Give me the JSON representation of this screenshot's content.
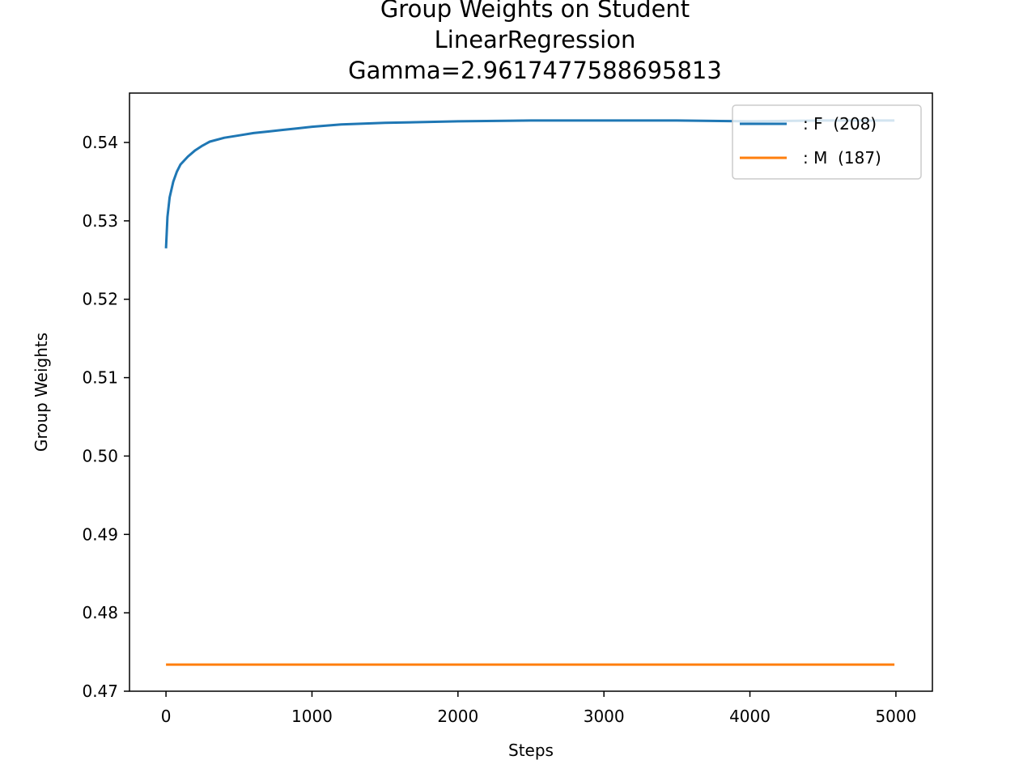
{
  "chart_data": {
    "type": "line",
    "title_lines": [
      "Group Weights on Student",
      "LinearRegression",
      "Gamma=2.9617477588695813"
    ],
    "xlabel": "Steps",
    "ylabel": "Group Weights",
    "xlim": [
      -250,
      5250
    ],
    "ylim": [
      0.47,
      0.5463
    ],
    "xticks": [
      0,
      1000,
      2000,
      3000,
      4000,
      5000
    ],
    "xtick_labels": [
      "0",
      "1000",
      "2000",
      "3000",
      "4000",
      "5000"
    ],
    "yticks": [
      0.47,
      0.48,
      0.49,
      0.5,
      0.51,
      0.52,
      0.53,
      0.54
    ],
    "ytick_labels": [
      "0.47",
      "0.48",
      "0.49",
      "0.50",
      "0.51",
      "0.52",
      "0.53",
      "0.54"
    ],
    "grid": false,
    "legend_position": "top-right",
    "series": [
      {
        "name": ": F  (208)",
        "color": "#1f77b4",
        "x": [
          0,
          10,
          25,
          50,
          75,
          100,
          150,
          200,
          250,
          300,
          400,
          500,
          600,
          700,
          800,
          900,
          1000,
          1200,
          1500,
          2000,
          2500,
          3000,
          3500,
          4000,
          4500,
          4990
        ],
        "y": [
          0.5265,
          0.5305,
          0.533,
          0.535,
          0.5363,
          0.5372,
          0.5382,
          0.539,
          0.5396,
          0.5401,
          0.5406,
          0.5409,
          0.5412,
          0.5414,
          0.5416,
          0.5418,
          0.542,
          0.5423,
          0.5425,
          0.5427,
          0.5428,
          0.5428,
          0.5428,
          0.5427,
          0.5428,
          0.5428
        ]
      },
      {
        "name": ": M  (187)",
        "color": "#ff7f0e",
        "x": [
          0,
          4990
        ],
        "y": [
          0.4734,
          0.4734
        ]
      }
    ]
  }
}
